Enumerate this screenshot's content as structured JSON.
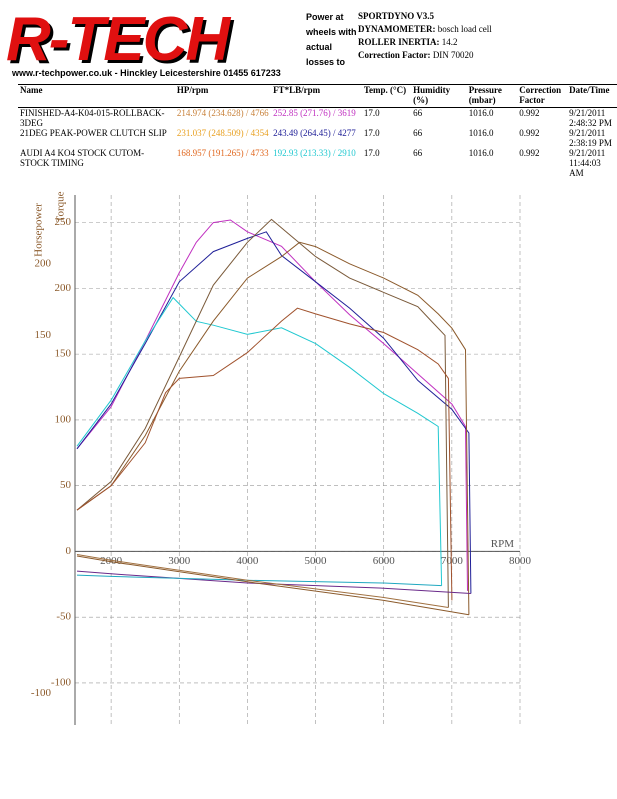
{
  "header": {
    "logo": "R-TECH",
    "website": "www.r-techpower.co.uk - Hinckley Leicestershire 01455 617233",
    "note": "Power at wheels with actual losses to give fly wheel power",
    "specs": [
      {
        "label": "SPORTDYNO V3.5"
      },
      {
        "label": "DYNAMOMETER:",
        "value": "bosch load cell"
      },
      {
        "label": "ROLLER INERTIA:",
        "value": "14.2"
      },
      {
        "label": "Correction Factor:",
        "value": "DIN 70020"
      }
    ]
  },
  "table": {
    "columns": [
      "Name",
      "HP/rpm",
      "FT*LB/rpm",
      "Temp. (°C)",
      "Humidity (%)",
      "Pressure (mbar)",
      "Correction Factor",
      "Date/Time"
    ],
    "rows": [
      [
        "FINISHED-A4-K04-015-ROLLBACK-3DEG",
        "214.974 (234.628) / 4766",
        "252.85 (271.76) / 3619",
        "17.0",
        "66",
        "1016.0",
        "0.992",
        "9/21/2011 2:48:32 PM"
      ],
      [
        "21DEG PEAK-POWER CLUTCH SLIP",
        "231.037 (248.509) / 4354",
        "243.49 (264.45) / 4277",
        "17.0",
        "66",
        "1016.0",
        "0.992",
        "9/21/2011 2:38:19 PM"
      ],
      [
        "AUDI A4 KO4 STOCK CUTOM-STOCK TIMING",
        "168.957 (191.265) / 4733",
        "192.93 (213.33) / 2910",
        "17.0",
        "66",
        "1016.0",
        "0.992",
        "9/21/2011 11:44:03 AM"
      ]
    ],
    "hp_colors": [
      "#c8823c",
      "#e8a020",
      "#e06820"
    ],
    "torque_colors": [
      "#c030c0",
      "#202098",
      "#20c8d0"
    ]
  },
  "chart_data": {
    "type": "line",
    "x_label": "RPM",
    "y_label": "Torque",
    "y2_label": "Horsepower",
    "xlim": [
      1470,
      8000
    ],
    "xticks": [
      2000,
      3000,
      4000,
      5000,
      6000,
      7000,
      8000
    ],
    "ylim": [
      -132,
      271
    ],
    "yticks": [
      -100,
      -50,
      0,
      50,
      100,
      150,
      200,
      250
    ],
    "y2lim": [
      -122,
      248
    ],
    "y2ticks": [
      -100,
      150,
      200
    ],
    "grid": true,
    "series": [
      {
        "color": "#c030c0",
        "x": [
          1500,
          2000,
          2500,
          3000,
          3250,
          3500,
          3750,
          4000,
          4500,
          5000,
          5500,
          6000,
          6500,
          7000,
          7200,
          7230
        ],
        "values": [
          78,
          110,
          160,
          212,
          235,
          250,
          252,
          243,
          232,
          205,
          180,
          158,
          135,
          112,
          95,
          -30
        ]
      },
      {
        "color": "#202098",
        "x": [
          1500,
          2000,
          2500,
          3000,
          3500,
          4000,
          4277,
          4500,
          5000,
          5500,
          6000,
          6500,
          7000,
          7250,
          7280
        ],
        "values": [
          78,
          112,
          158,
          205,
          228,
          238,
          243,
          225,
          205,
          185,
          162,
          130,
          108,
          90,
          -32
        ]
      },
      {
        "color": "#20c8d0",
        "x": [
          1500,
          2000,
          2500,
          2910,
          3250,
          3500,
          4000,
          4500,
          5000,
          5500,
          6000,
          6500,
          6800,
          6850
        ],
        "values": [
          80,
          115,
          160,
          193,
          175,
          172,
          165,
          170,
          158,
          140,
          120,
          105,
          95,
          -26
        ]
      },
      {
        "color": "#8b5a2b",
        "axis": "y2",
        "x": [
          1500,
          2000,
          2500,
          3000,
          3500,
          4000,
          4500,
          4766,
          5000,
          5500,
          6000,
          6500,
          6800,
          7000,
          7200,
          7250
        ],
        "values": [
          28,
          45,
          80,
          125,
          160,
          190,
          205,
          215,
          212,
          200,
          190,
          178,
          165,
          155,
          140,
          -45
        ]
      },
      {
        "color": "#7a5a3a",
        "axis": "y2",
        "x": [
          1500,
          2000,
          2500,
          3000,
          3500,
          4000,
          4354,
          4500,
          5000,
          5500,
          6000,
          6500,
          6700,
          6900,
          6950
        ],
        "values": [
          28,
          48,
          85,
          135,
          185,
          215,
          231,
          225,
          205,
          190,
          180,
          170,
          160,
          150,
          -40
        ]
      },
      {
        "color": "#a0522d",
        "axis": "y2",
        "x": [
          1500,
          2000,
          2500,
          2800,
          3000,
          3500,
          4000,
          4500,
          4733,
          5000,
          5500,
          6000,
          6500,
          6800,
          6950,
          7000
        ],
        "values": [
          28,
          45,
          75,
          110,
          120,
          122,
          138,
          160,
          169,
          165,
          158,
          152,
          140,
          130,
          120,
          -35
        ]
      },
      {
        "color": "#6a2a8a",
        "x": [
          7280,
          6000,
          4000,
          2000,
          1500
        ],
        "values": [
          -32,
          -28,
          -24,
          -17,
          -15
        ]
      },
      {
        "color": "#20a8c0",
        "x": [
          6850,
          6000,
          4000,
          2000,
          1500
        ],
        "values": [
          -26,
          -24,
          -22,
          -19,
          -18
        ]
      },
      {
        "color": "#8b5a2b",
        "axis": "y2",
        "x": [
          7250,
          6000,
          4000,
          2000,
          1500
        ],
        "values": [
          -45,
          -35,
          -22,
          -8,
          -4
        ]
      },
      {
        "color": "#a07040",
        "axis": "y2",
        "x": [
          6950,
          6000,
          4000,
          2000,
          1500
        ],
        "values": [
          -40,
          -33,
          -21,
          -7,
          -3
        ]
      }
    ]
  }
}
